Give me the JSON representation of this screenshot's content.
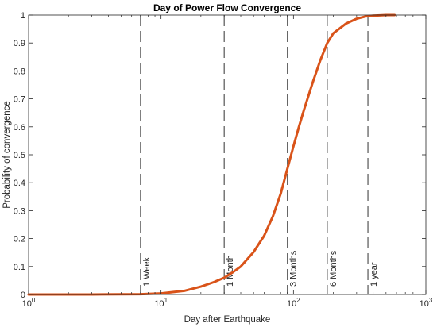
{
  "chart_data": {
    "type": "line",
    "title": "Day of Power Flow Convergence",
    "xlabel": "Day after Earthquake",
    "ylabel": "Probability of convergence",
    "xscale": "log",
    "xlim": [
      1,
      1000
    ],
    "ylim": [
      0,
      1
    ],
    "x_ticks": [
      {
        "base": "10",
        "exp": "0",
        "value": 1
      },
      {
        "base": "10",
        "exp": "1",
        "value": 10
      },
      {
        "base": "10",
        "exp": "2",
        "value": 100
      },
      {
        "base": "10",
        "exp": "3",
        "value": 1000
      }
    ],
    "y_ticks": [
      "0",
      "0.1",
      "0.2",
      "0.3",
      "0.4",
      "0.5",
      "0.6",
      "0.7",
      "0.8",
      "0.9",
      "1"
    ],
    "grid": false,
    "series": [
      {
        "color": "#d95319",
        "x": [
          1,
          3,
          7,
          10,
          15,
          20,
          25,
          30,
          35,
          40,
          50,
          60,
          70,
          80,
          90,
          100,
          110,
          120,
          140,
          160,
          180,
          200,
          250,
          300,
          350,
          400,
          450,
          500,
          580
        ],
        "y": [
          0,
          0,
          0.001,
          0.004,
          0.013,
          0.028,
          0.044,
          0.06,
          0.08,
          0.1,
          0.152,
          0.21,
          0.28,
          0.36,
          0.45,
          0.53,
          0.6,
          0.66,
          0.76,
          0.84,
          0.9,
          0.935,
          0.97,
          0.987,
          0.995,
          0.998,
          0.999,
          1,
          1
        ]
      }
    ],
    "reference_lines": [
      {
        "x": 7,
        "label": "1 Week"
      },
      {
        "x": 30,
        "label": "1 Month"
      },
      {
        "x": 90,
        "label": "3 Months"
      },
      {
        "x": 180,
        "label": "6 Months"
      },
      {
        "x": 365,
        "label": "1 year"
      }
    ]
  }
}
